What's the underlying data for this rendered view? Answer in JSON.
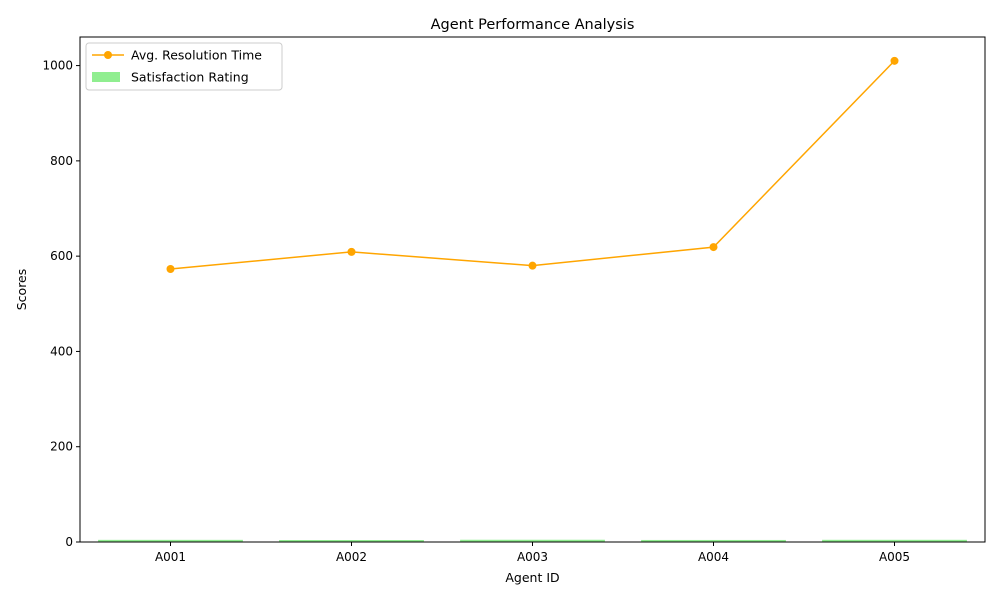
{
  "chart_data": {
    "type": "bar+line",
    "title": "Agent Performance Analysis",
    "xlabel": "Agent ID",
    "ylabel": "Scores",
    "categories": [
      "A001",
      "A002",
      "A003",
      "A004",
      "A005"
    ],
    "ylim": [
      0,
      1060
    ],
    "yticks": [
      0,
      200,
      400,
      600,
      800,
      1000
    ],
    "grid": false,
    "legend_position": "top-left",
    "series": [
      {
        "name": "Avg. Resolution Time",
        "kind": "line",
        "marker": "circle",
        "color": "#FFA500",
        "values": [
          573,
          609,
          580,
          619,
          1010
        ]
      },
      {
        "name": "Satisfaction Rating",
        "kind": "bar",
        "color": "#90EE90",
        "values": [
          4.5,
          4.2,
          4.7,
          4.3,
          4.6
        ]
      }
    ]
  }
}
